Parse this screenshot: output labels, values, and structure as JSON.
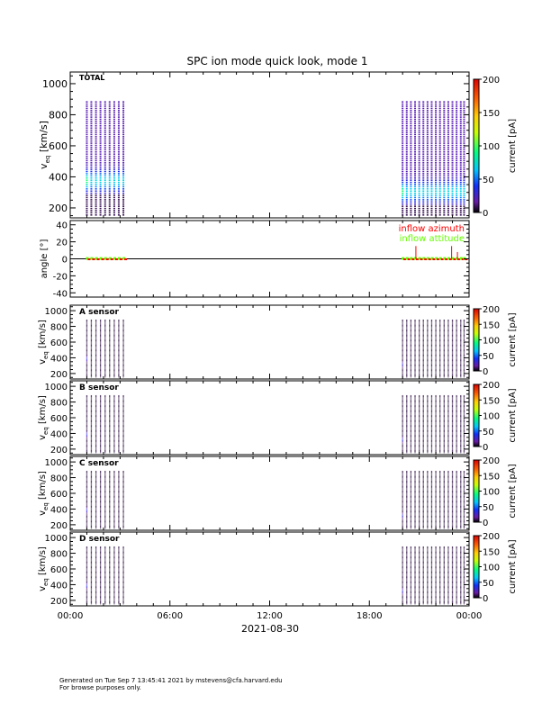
{
  "chart_data": {
    "type": "heatmap",
    "title": "SPC ion mode quick look, mode 1",
    "xlabel": "2021-08-30",
    "x_ticks": [
      "00:00",
      "06:00",
      "12:00",
      "18:00",
      "00:00"
    ],
    "xlim_hours": [
      0,
      24
    ],
    "scan_times_hours": [
      1.0,
      1.27,
      1.55,
      1.82,
      2.1,
      2.37,
      2.65,
      2.92,
      3.2,
      20.0,
      20.25,
      20.5,
      20.75,
      21.0,
      21.25,
      21.5,
      21.75,
      22.0,
      22.25,
      22.5,
      22.75,
      23.0,
      23.25,
      23.5,
      23.7
    ],
    "panels": [
      {
        "label": "TOTAL",
        "ylabel": "v_eq [km/s]",
        "ylim": [
          136,
          1075
        ],
        "yticks": [
          200,
          400,
          600,
          800,
          1000
        ],
        "cbar_label": "current [pA]",
        "cbar_ticks": [
          0,
          50,
          100,
          150,
          200
        ],
        "cbar_range": [
          0,
          200
        ],
        "vmax_kms": 880,
        "vmin_kms": 150,
        "peak_kms": [
          370,
          300
        ]
      },
      {
        "label": "A sensor",
        "ylabel": "v_eq [km/s]",
        "ylim": [
          130,
          1070
        ],
        "yticks": [
          200,
          400,
          600,
          800,
          1000
        ],
        "cbar_label": "current [pA]",
        "cbar_ticks": [
          0,
          50,
          100,
          150,
          200
        ],
        "cbar_range": [
          0,
          200
        ],
        "vmax_kms": 880,
        "vmin_kms": 150,
        "peak_kms": [
          380,
          310
        ]
      },
      {
        "label": "B sensor",
        "ylabel": "v_eq [km/s]",
        "ylim": [
          130,
          1070
        ],
        "yticks": [
          200,
          400,
          600,
          800,
          1000
        ],
        "cbar_label": "current [pA]",
        "cbar_ticks": [
          0,
          50,
          100,
          150,
          200
        ],
        "cbar_range": [
          0,
          200
        ],
        "vmax_kms": 880,
        "vmin_kms": 150,
        "peak_kms": [
          380,
          310
        ]
      },
      {
        "label": "C sensor",
        "ylabel": "v_eq [km/s]",
        "ylim": [
          130,
          1070
        ],
        "yticks": [
          200,
          400,
          600,
          800,
          1000
        ],
        "cbar_label": "current [pA]",
        "cbar_ticks": [
          0,
          50,
          100,
          150,
          200
        ],
        "cbar_range": [
          0,
          200
        ],
        "vmax_kms": 880,
        "vmin_kms": 150,
        "peak_kms": [
          380,
          310
        ]
      },
      {
        "label": "D sensor",
        "ylabel": "v_eq [km/s]",
        "ylim": [
          130,
          1070
        ],
        "yticks": [
          200,
          400,
          600,
          800,
          1000
        ],
        "cbar_label": "current [pA]",
        "cbar_ticks": [
          0,
          50,
          100,
          150,
          200
        ],
        "cbar_range": [
          0,
          200
        ],
        "vmax_kms": 880,
        "vmin_kms": 150,
        "peak_kms": [
          380,
          310
        ]
      }
    ],
    "angle_panel": {
      "ylabel": "angle [°]",
      "ylim": [
        -45,
        45
      ],
      "yticks": [
        -40,
        -20,
        0,
        20,
        40
      ],
      "legend": [
        {
          "name": "inflow azimuth",
          "color": "#ff0000"
        },
        {
          "name": "inflow attitude",
          "color": "#66ff00"
        }
      ],
      "azimuth_spikes": [
        {
          "t": 20.8,
          "v": 15
        },
        {
          "t": 22.95,
          "v": 15
        },
        {
          "t": 23.3,
          "v": 8
        }
      ]
    }
  },
  "footer": {
    "line1": "Generated on Tue Sep  7 13:45:41 2021 by mstevens@cfa.harvard.edu",
    "line2": "For browse purposes only."
  }
}
